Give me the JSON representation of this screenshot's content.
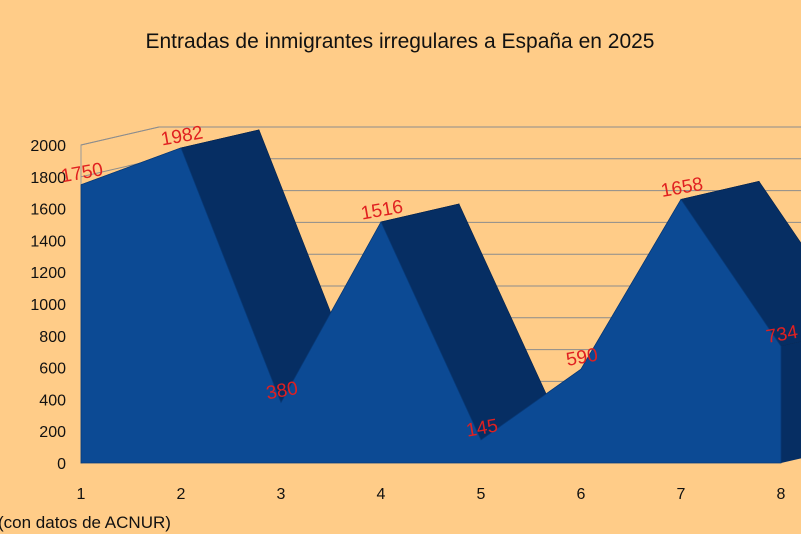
{
  "chart_data": {
    "type": "area",
    "title": "Entradas de inmigrantes irregulares a España en 2025",
    "x": [
      1,
      2,
      3,
      4,
      5,
      6,
      7,
      8
    ],
    "x_tick_labels": [
      "1",
      "2",
      "3",
      "4",
      "5",
      "6",
      "7",
      "8"
    ],
    "values": [
      1750,
      1982,
      380,
      1516,
      145,
      590,
      1658,
      734
    ],
    "data_labels": [
      "1750",
      "1982",
      "380",
      "1516",
      "145",
      "590",
      "1658",
      "734"
    ],
    "ylim": [
      0,
      2000
    ],
    "y_ticks": [
      0,
      200,
      400,
      600,
      800,
      1000,
      1200,
      1400,
      1600,
      1800,
      2000
    ],
    "y_tick_labels": [
      "0",
      "200",
      "400",
      "600",
      "800",
      "1000",
      "1200",
      "1400",
      "1600",
      "1800",
      "2000"
    ],
    "grid": true,
    "three_d": true,
    "xlabel": "",
    "ylabel": "",
    "source_note": "(con datos de ACNUR)",
    "colors": {
      "background": "#FFCC88",
      "area_front": "#0C4A94",
      "area_top": "#0A3F80",
      "area_side": "#062E63",
      "gridline": "#8C8C8C",
      "wall": "#FFCC88",
      "data_label": "#E02020"
    }
  }
}
